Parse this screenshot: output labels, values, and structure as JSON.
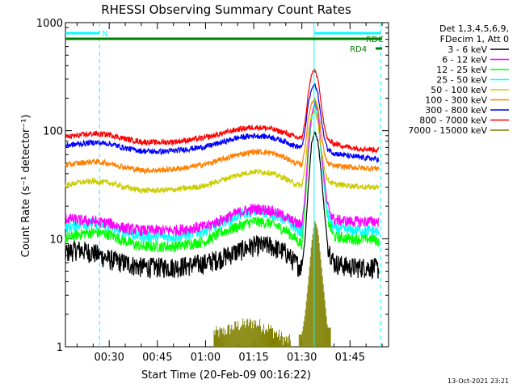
{
  "chart_data": {
    "type": "line",
    "title": "RHESSI Observing Summary Count Rates",
    "xlabel": "Start Time (20-Feb-09 00:16:22)",
    "ylabel": "Count Rate (s⁻¹ detector⁻¹)",
    "yscale": "log",
    "ylim": [
      1,
      1000
    ],
    "xlim_minutes": [
      16.37,
      117.0
    ],
    "x_ticks": [
      {
        "minute": 30,
        "label": "00:30"
      },
      {
        "minute": 45,
        "label": "00:45"
      },
      {
        "minute": 60,
        "label": "01:00"
      },
      {
        "minute": 75,
        "label": "01:15"
      },
      {
        "minute": 90,
        "label": "01:30"
      },
      {
        "minute": 105,
        "label": "01:45"
      }
    ],
    "y_ticks": [
      {
        "value": 1,
        "label": "1"
      },
      {
        "value": 10,
        "label": "10"
      },
      {
        "value": 100,
        "label": "100"
      },
      {
        "value": 1000,
        "label": "1000"
      }
    ],
    "legend_header": [
      "Det 1,3,4,5,6,9,",
      "FDecim 1, Att 0"
    ],
    "legend_placement": "right",
    "grid": false,
    "x_minutes": [
      16.4,
      20,
      25,
      30,
      35,
      40,
      45,
      50,
      55,
      60,
      65,
      70,
      75,
      80,
      85,
      88,
      90,
      91,
      92,
      93,
      94,
      95,
      96,
      97,
      98,
      100,
      105,
      110,
      112,
      114
    ],
    "series": [
      {
        "name": "3 - 6 keV",
        "color": "#000000",
        "values": [
          7.5,
          8.0,
          7.5,
          6.5,
          6.0,
          5.5,
          5.5,
          5.5,
          5.7,
          6.0,
          6.7,
          7.7,
          8.7,
          8.7,
          7.5,
          6.0,
          5.5,
          10,
          30,
          75,
          100,
          80,
          42,
          18,
          9,
          6.0,
          5.5,
          5.5,
          5.5,
          5.3
        ]
      },
      {
        "name": "6 - 12 keV",
        "color": "#ff00ff",
        "values": [
          15.5,
          15.0,
          14.5,
          14.0,
          12.5,
          12.0,
          12.0,
          12.0,
          12.5,
          13.0,
          15.0,
          17.5,
          19.0,
          18.5,
          16.0,
          14.0,
          13.5,
          25,
          70,
          140,
          180,
          150,
          70,
          35,
          20,
          15,
          14.5,
          14.5,
          14.5,
          14.5
        ]
      },
      {
        "name": "12 - 25 keV",
        "color": "#00ff00",
        "values": [
          10.0,
          11.0,
          11.5,
          11.0,
          9.5,
          8.5,
          8.5,
          8.5,
          9.0,
          9.5,
          11.5,
          13.0,
          14.5,
          14.0,
          12.0,
          10.0,
          9.0,
          20,
          60,
          130,
          190,
          150,
          65,
          30,
          15,
          10.5,
          10.0,
          10.0,
          10.0,
          9.5
        ]
      },
      {
        "name": "25 - 50 keV",
        "color": "#00ffff",
        "values": [
          12.5,
          13.5,
          14.0,
          13.0,
          11.5,
          10.5,
          10.5,
          10.5,
          11.0,
          12.0,
          14.0,
          16.5,
          18.0,
          17.5,
          15.0,
          12.5,
          11.5,
          25,
          65,
          130,
          170,
          130,
          60,
          30,
          17,
          12.5,
          12.0,
          12.0,
          12.0,
          11.5
        ]
      },
      {
        "name": "50 - 100 keV",
        "color": "#cccc00",
        "values": [
          31,
          33,
          34,
          33,
          30,
          28,
          28,
          28.5,
          29.5,
          31,
          35,
          39,
          42,
          41,
          36,
          32,
          31,
          45,
          95,
          140,
          150,
          120,
          70,
          45,
          35,
          32,
          31,
          30,
          30,
          30
        ]
      },
      {
        "name": "100 - 300 keV",
        "color": "#ff8000",
        "values": [
          48,
          50,
          52,
          50,
          46,
          43,
          43,
          44,
          46,
          49,
          54,
          60,
          64,
          63,
          56,
          50,
          48,
          70,
          130,
          180,
          200,
          165,
          95,
          62,
          50,
          47,
          46,
          45,
          45,
          45
        ]
      },
      {
        "name": "300 - 800 keV",
        "color": "#0000ff",
        "values": [
          73,
          75,
          78,
          76,
          69,
          65,
          64,
          65,
          68,
          71,
          78,
          86,
          90,
          88,
          79,
          72,
          70,
          100,
          180,
          240,
          270,
          220,
          130,
          85,
          68,
          62,
          58,
          56,
          55,
          54
        ]
      },
      {
        "name": "800 - 7000 keV",
        "color": "#ff0000",
        "values": [
          88,
          90,
          94,
          92,
          84,
          79,
          78,
          79,
          82,
          86,
          94,
          103,
          108,
          105,
          95,
          87,
          85,
          120,
          220,
          330,
          370,
          300,
          180,
          110,
          82,
          76,
          70,
          68,
          67,
          66
        ]
      },
      {
        "name": "7000 - 15000 keV",
        "color": "#808000",
        "values": [
          0,
          0,
          0,
          0,
          0,
          0,
          0,
          0,
          0,
          0,
          1.3,
          1.5,
          1.6,
          1.4,
          1.1,
          0,
          1.3,
          2.0,
          4.0,
          9.0,
          15.0,
          12.0,
          6.0,
          3.0,
          1.5,
          0,
          0,
          0,
          0,
          0
        ]
      }
    ],
    "attenuator_bars": [
      {
        "label": "N",
        "color": "#00ffff",
        "x_start": 16.4,
        "x_end": 27.0,
        "level": "top"
      },
      {
        "label": "",
        "color": "#00ffff",
        "x_start": 94.0,
        "x_end": 114.5,
        "level": "top"
      },
      {
        "label": "RDC",
        "color": "#008000",
        "x_start": 16.4,
        "x_end": 115.0,
        "level": "second"
      },
      {
        "label": "RD4",
        "color": "#008000",
        "x_start": 113.0,
        "x_end": 115.0,
        "level": "third"
      }
    ],
    "vertical_markers": [
      {
        "minute": 27.0,
        "color": "#00ffff",
        "style": "dashed"
      },
      {
        "minute": 93.8,
        "color": "#00ffff",
        "style": "solid"
      },
      {
        "minute": 114.5,
        "color": "#00ffff",
        "style": "dashed"
      }
    ]
  },
  "footer": {
    "timestamp": "13-Oct-2021 23:21"
  }
}
